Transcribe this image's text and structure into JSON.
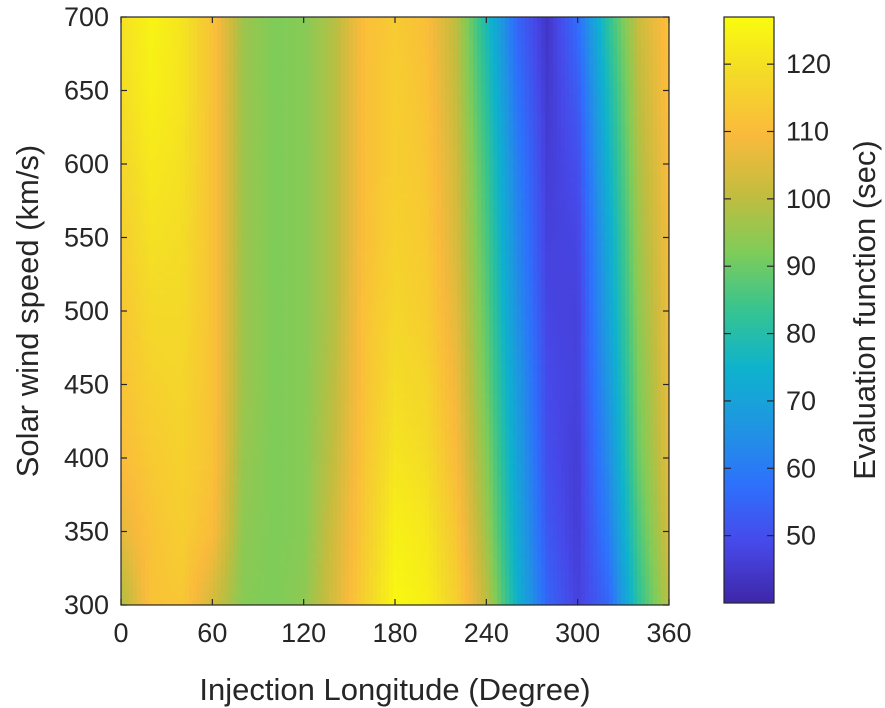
{
  "chart_data": {
    "type": "heatmap",
    "title": "",
    "xlabel": "Injection Longitude (Degree)",
    "ylabel": "Solar wind speed (km/s)",
    "colorbar_label": "Evaluation function (sec)",
    "xlim": [
      0,
      360
    ],
    "ylim": [
      300,
      700
    ],
    "xticks": [
      0,
      60,
      120,
      180,
      240,
      300,
      360
    ],
    "yticks": [
      300,
      350,
      400,
      450,
      500,
      550,
      600,
      650,
      700
    ],
    "clim": [
      40,
      127
    ],
    "colorbar_ticks": [
      50,
      60,
      70,
      80,
      90,
      100,
      110,
      120
    ],
    "colormap": "parula",
    "grid": false,
    "x": [
      0,
      20,
      40,
      60,
      80,
      100,
      120,
      140,
      160,
      180,
      200,
      220,
      240,
      260,
      280,
      300,
      320,
      340,
      360
    ],
    "y": [
      300,
      350,
      400,
      450,
      500,
      550,
      600,
      650,
      700
    ],
    "z": [
      [
        98,
        112,
        113,
        103,
        93,
        92,
        94,
        104,
        116,
        126,
        124,
        116,
        100,
        75,
        55,
        47,
        55,
        82,
        100
      ],
      [
        106,
        112,
        115,
        110,
        94,
        92,
        93,
        103,
        114,
        124,
        122,
        113,
        96,
        72,
        52,
        46,
        60,
        86,
        104
      ],
      [
        110,
        114,
        116,
        112,
        95,
        92,
        93,
        101,
        113,
        121,
        119,
        110,
        93,
        70,
        50,
        46,
        64,
        90,
        106
      ],
      [
        112,
        116,
        117,
        112,
        96,
        92,
        93,
        100,
        112,
        119,
        117,
        108,
        90,
        68,
        49,
        47,
        67,
        92,
        107
      ],
      [
        113,
        118,
        118,
        112,
        96,
        92,
        93,
        99,
        112,
        117,
        115,
        106,
        88,
        65,
        48,
        47,
        70,
        94,
        108
      ],
      [
        115,
        120,
        119,
        112,
        96,
        92,
        93,
        99,
        111,
        116,
        114,
        104,
        86,
        63,
        47,
        48,
        72,
        96,
        109
      ],
      [
        117,
        122,
        120,
        112,
        96,
        92,
        93,
        99,
        111,
        115,
        113,
        103,
        84,
        61,
        46,
        50,
        75,
        98,
        110
      ],
      [
        119,
        124,
        121,
        112,
        96,
        92,
        93,
        99,
        111,
        115,
        112,
        101,
        81,
        58,
        45,
        53,
        78,
        100,
        111
      ],
      [
        120,
        125,
        121,
        112,
        96,
        92,
        93,
        99,
        111,
        114,
        111,
        100,
        78,
        55,
        44,
        57,
        82,
        102,
        112
      ]
    ]
  }
}
